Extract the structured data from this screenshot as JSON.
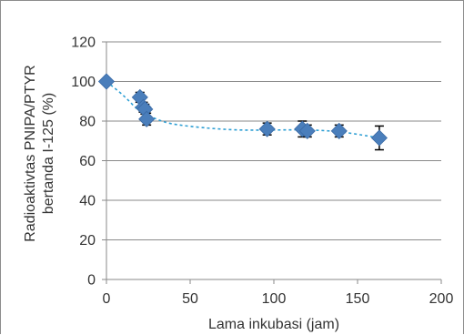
{
  "chart_data": {
    "type": "scatter",
    "title": "",
    "xlabel": "Lama inkubasi (jam)",
    "ylabel_lines": [
      "Radioaktivtas PNIPA/PTYR",
      "bertanda  I-125 (%)"
    ],
    "xlim": [
      0,
      200
    ],
    "ylim": [
      0,
      120
    ],
    "x_ticks": [
      0,
      50,
      100,
      150,
      200
    ],
    "y_ticks": [
      0,
      20,
      40,
      60,
      80,
      100,
      120
    ],
    "grid": "horizontal",
    "legend": "none",
    "series": [
      {
        "marker": "diamond",
        "color": "#4a7ebb",
        "points": [
          {
            "x": 0,
            "y": 100,
            "err": 0
          },
          {
            "x": 20,
            "y": 92,
            "err": 2.5
          },
          {
            "x": 22,
            "y": 87,
            "err": 2.5
          },
          {
            "x": 23,
            "y": 86,
            "err": 2.5
          },
          {
            "x": 24,
            "y": 81,
            "err": 3
          },
          {
            "x": 96,
            "y": 76,
            "err": 3
          },
          {
            "x": 117,
            "y": 76,
            "err": 4
          },
          {
            "x": 120,
            "y": 75,
            "err": 3
          },
          {
            "x": 139,
            "y": 75,
            "err": 3
          },
          {
            "x": 163,
            "y": 71.5,
            "err": 6
          }
        ]
      }
    ],
    "trendline": {
      "style": "dashed",
      "color": "#2e9fd4",
      "x": [
        0,
        10,
        20,
        30,
        40,
        60,
        80,
        100,
        120,
        140,
        163
      ],
      "y": [
        100,
        93,
        85,
        81,
        78.5,
        76.5,
        75.5,
        75.5,
        75.5,
        74.5,
        71.5
      ]
    }
  }
}
